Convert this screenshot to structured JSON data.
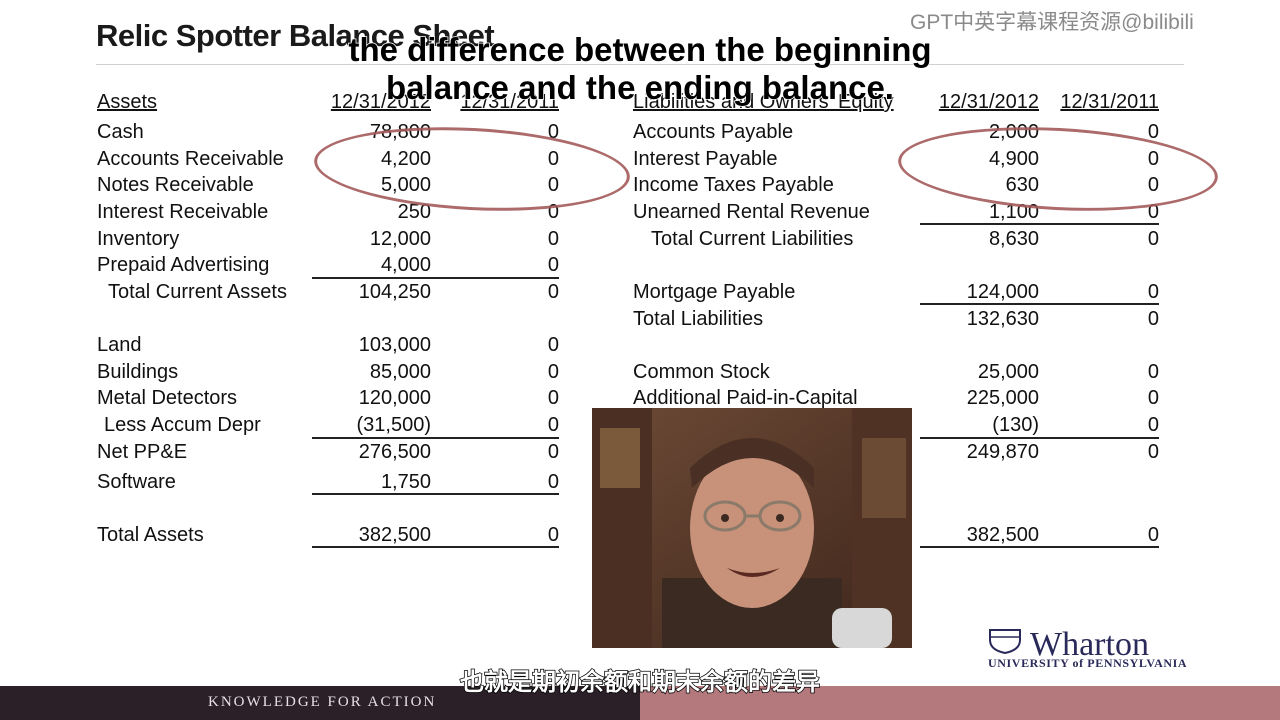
{
  "title": "Relic Spotter Balance Sheet",
  "watermark": "GPT中英字幕课程资源@bilibili",
  "caption": {
    "line1": "the difference between the beginning",
    "line2": "balance and the ending balance."
  },
  "subtitle_zh": "也就是期初余额和期末余额的差异",
  "footer_text": "KNOWLEDGE FOR ACTION",
  "logo": {
    "main": "Wharton",
    "sub": "UNIVERSITY of PENNSYLVANIA"
  },
  "assets": {
    "header": "Assets",
    "col1": "12/31/2012",
    "col2": "12/31/2011",
    "rows": [
      {
        "label": "Cash",
        "v1": "78,800",
        "v2": "0"
      },
      {
        "label": "Accounts Receivable",
        "v1": "4,200",
        "v2": "0"
      },
      {
        "label": "Notes Receivable",
        "v1": "5,000",
        "v2": "0"
      },
      {
        "label": "Interest Receivable",
        "v1": "250",
        "v2": "0"
      },
      {
        "label": "Inventory",
        "v1": "12,000",
        "v2": "0"
      },
      {
        "label": "Prepaid Advertising",
        "v1": "4,000",
        "v2": "0"
      },
      {
        "label": "Total Current Assets",
        "v1": "104,250",
        "v2": "0"
      },
      {
        "label": "Land",
        "v1": "103,000",
        "v2": "0"
      },
      {
        "label": "Buildings",
        "v1": "85,000",
        "v2": "0"
      },
      {
        "label": "Metal Detectors",
        "v1": "120,000",
        "v2": "0"
      },
      {
        "label": "Less Accum Depr",
        "v1": "(31,500)",
        "v2": "0"
      },
      {
        "label": "Net PP&E",
        "v1": "276,500",
        "v2": "0"
      },
      {
        "label": "Software",
        "v1": "1,750",
        "v2": "0"
      },
      {
        "label": "Total Assets",
        "v1": "382,500",
        "v2": "0"
      }
    ]
  },
  "liabilities": {
    "header": "Liabilities and Owners' Equity",
    "col1": "12/31/2012",
    "col2": "12/31/2011",
    "rows": [
      {
        "label": "Accounts Payable",
        "v1": "2,000",
        "v2": "0"
      },
      {
        "label": "Interest Payable",
        "v1": "4,900",
        "v2": "0"
      },
      {
        "label": "Income Taxes Payable",
        "v1": "630",
        "v2": "0"
      },
      {
        "label": "Unearned Rental Revenue",
        "v1": "1,100",
        "v2": "0"
      },
      {
        "label": "Total Current Liabilities",
        "v1": "8,630",
        "v2": "0"
      },
      {
        "label": "Mortgage Payable",
        "v1": "124,000",
        "v2": "0"
      },
      {
        "label": "Total Liabilities",
        "v1": "132,630",
        "v2": "0"
      },
      {
        "label": "Common Stock",
        "v1": "25,000",
        "v2": "0"
      },
      {
        "label": "Additional Paid-in-Capital",
        "v1": "225,000",
        "v2": "0"
      },
      {
        "label": "",
        "v1": "(130)",
        "v2": "0"
      },
      {
        "label": "",
        "v1": "249,870",
        "v2": "0"
      },
      {
        "label": "",
        "v1": "382,500",
        "v2": "0"
      }
    ]
  }
}
